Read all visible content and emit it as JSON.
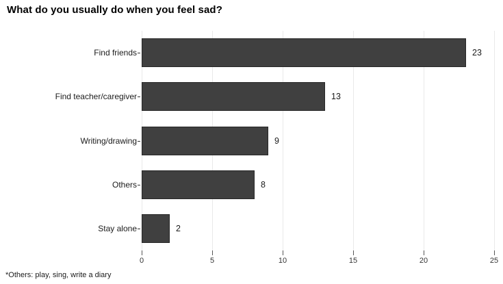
{
  "title": "What do you usually do when you feel sad?",
  "footnote": "*Others: play, sing, write a diary",
  "chart_data": {
    "type": "bar",
    "orientation": "horizontal",
    "title": "What do you usually do when you feel sad?",
    "categories": [
      "Find friends",
      "Find teacher/caregiver",
      "Writing/drawing",
      "Others",
      "Stay alone"
    ],
    "values": [
      23,
      13,
      9,
      8,
      2
    ],
    "data_labels": [
      23,
      13,
      9,
      8,
      2
    ],
    "xlabel": "",
    "ylabel": "",
    "xlim": [
      0,
      25
    ],
    "xticks": [
      0,
      5,
      10,
      15,
      20,
      25
    ],
    "grid": true,
    "legend": false,
    "annotation": "*Others: play, sing, write a diary",
    "bar_fill_color": "#404040",
    "bar_border_color": "#262626",
    "gridline_color": "#e9e9e9",
    "text_color": "#1a1a1a",
    "axis_tick_color": "#555555"
  }
}
